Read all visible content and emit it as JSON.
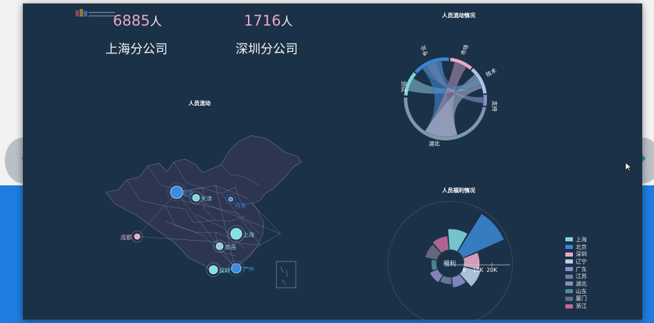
{
  "header": {
    "stats": [
      {
        "value": "6885",
        "unit": "人",
        "name": "上海分公司"
      },
      {
        "value": "1716",
        "unit": "人",
        "name": "深圳分公司"
      }
    ]
  },
  "map_panel": {
    "title": "人员流动",
    "cities": [
      {
        "name": "北京",
        "color": "#3b8de0"
      },
      {
        "name": "天津",
        "color": "#7ad7e0"
      },
      {
        "name": "丹东",
        "color": "#3b8de0"
      },
      {
        "name": "上海",
        "color": "#7fe3df"
      },
      {
        "name": "南昌",
        "color": "#8fcfe0"
      },
      {
        "name": "成都",
        "color": "#e6a6c8"
      },
      {
        "name": "广州",
        "color": "#3b8de0"
      },
      {
        "name": "深圳",
        "color": "#7fe3df"
      }
    ]
  },
  "chord_panel": {
    "title": "人员流动情况",
    "segments": [
      {
        "label": "测试",
        "color": "#7fd3da"
      },
      {
        "label": "专业",
        "color": "#3b84cf"
      },
      {
        "label": "市场与产品",
        "color": "#e8a8c8"
      },
      {
        "label": "技术",
        "color": "#a9c7e8"
      },
      {
        "label": "支持",
        "color": "#8a8fc8"
      },
      {
        "label": "湖北",
        "color": "#7f98b0"
      }
    ]
  },
  "welfare_panel": {
    "title": "人员福利情况",
    "center_label": "福利",
    "axis_ticks": [
      "0",
      "10K",
      "20K"
    ]
  },
  "chart_data": [
    {
      "type": "map",
      "title": "人员流动",
      "points": [
        "北京",
        "天津",
        "丹东",
        "上海",
        "南昌",
        "成都",
        "广州",
        "深圳"
      ]
    },
    {
      "type": "chord",
      "title": "人员流动情况",
      "categories": [
        "测试",
        "专业",
        "市场与产品",
        "技术",
        "支持",
        "湖北"
      ]
    },
    {
      "type": "polar-bar",
      "title": "人员福利情况",
      "center_label": "福利",
      "radial_ticks": [
        0,
        10000,
        20000
      ],
      "series_names": [
        "上海",
        "北京",
        "深圳",
        "辽宁",
        "广东",
        "江苏",
        "湖北",
        "山东",
        "厦门",
        "浙江"
      ],
      "values": [
        12000,
        26000,
        9000,
        10000,
        6000,
        4000,
        5000,
        3000,
        7000,
        8000
      ]
    }
  ],
  "legend": {
    "items": [
      {
        "label": "上海",
        "color": "#7fd3da"
      },
      {
        "label": "北京",
        "color": "#3b84cf"
      },
      {
        "label": "深圳",
        "color": "#e8a8c8"
      },
      {
        "label": "辽宁",
        "color": "#b8d0e8"
      },
      {
        "label": "广东",
        "color": "#8a8fc8"
      },
      {
        "label": "江苏",
        "color": "#6d7fa0"
      },
      {
        "label": "湖北",
        "color": "#8f8bc0"
      },
      {
        "label": "山东",
        "color": "#4f8e98"
      },
      {
        "label": "厦门",
        "color": "#6a6e80"
      },
      {
        "label": "浙江",
        "color": "#c06a9a"
      }
    ]
  },
  "nav": {
    "prev_icon": "back-arrow-icon",
    "next_icon": "forward-arrow-icon"
  }
}
